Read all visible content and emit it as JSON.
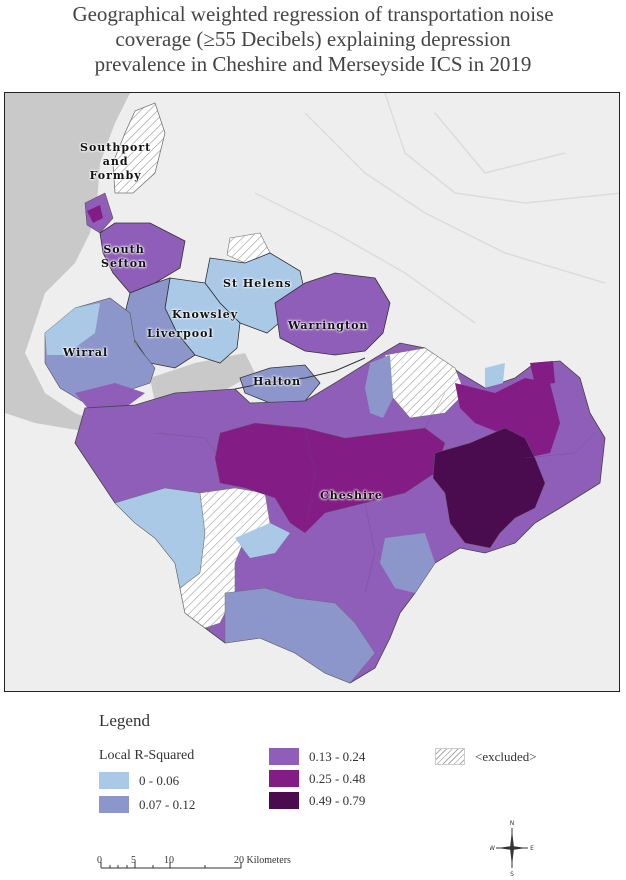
{
  "title": {
    "line1": "Geographical weighted regression of transportation noise",
    "line2": "coverage (≥55 Decibels) explaining depression",
    "line3": "prevalence in Cheshire and Merseyside ICS in 2019"
  },
  "map": {
    "region_labels": {
      "southport": "Southport\nand\nFormby",
      "south_sefton": "South\nSefton",
      "st_helens": "St Helens",
      "knowsley": "Knowsley",
      "liverpool": "Liverpool",
      "wirral": "Wirral",
      "warrington": "Warrington",
      "halton": "Halton",
      "cheshire": "Cheshire"
    }
  },
  "legend": {
    "title": "Legend",
    "subtitle": "Local R-Squared",
    "classes": [
      {
        "label": "0 - 0.06",
        "color": "#a9c9e6"
      },
      {
        "label": "0.07 - 0.12",
        "color": "#8c96cb"
      },
      {
        "label": "0.13 - 0.24",
        "color": "#8f5eb8"
      },
      {
        "label": "0.25 - 0.48",
        "color": "#841c86"
      },
      {
        "label": "0.49 - 0.79",
        "color": "#4a0b4f"
      }
    ],
    "excluded": "<excluded>"
  },
  "scale": {
    "ticks": [
      "0",
      "5",
      "10",
      "20 Kilometers"
    ]
  },
  "compass": {
    "n": "N",
    "s": "S",
    "e": "E",
    "w": "W"
  }
}
